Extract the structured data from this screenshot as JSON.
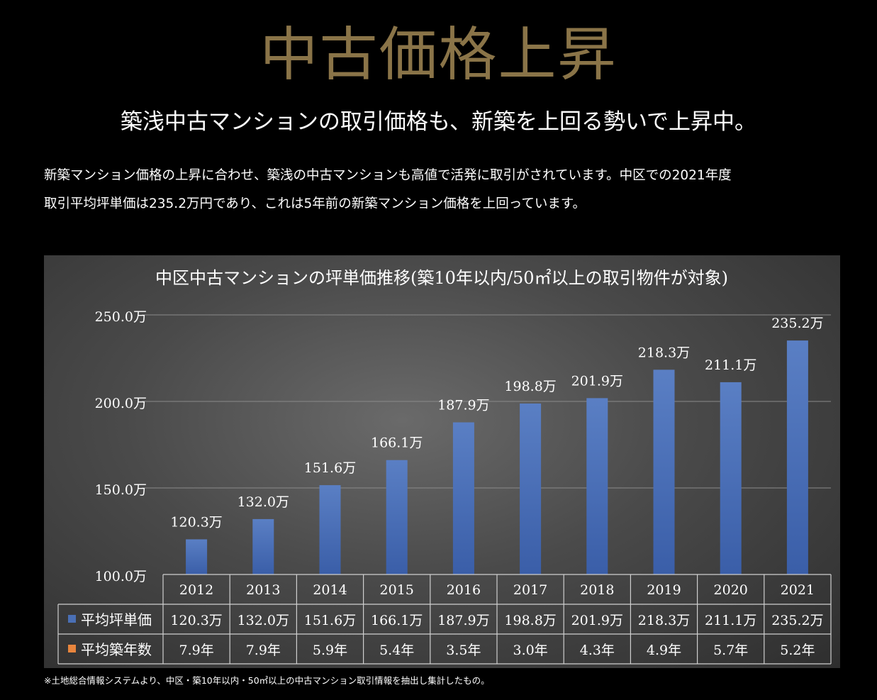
{
  "page": {
    "title": "中古価格上昇",
    "subtitle": "築浅中古マンションの取引価格も、新築を上回る勢いで上昇中。",
    "description_lines": [
      "新築マンション価格の上昇に合わせ、築浅の中古マンションも高値で活発に取引がされています。中区での2021年度",
      "取引平均坪単価は235.2万円であり、これは5年前の新築マンション価格を上回っています。"
    ],
    "footnote": "※土地総合情報システムより、中区・築10年以内・50㎡以上の中古マンション取引情報を抽出し集計したもの。"
  },
  "colors": {
    "title_gold": "#8a7448",
    "bar_blue": "#4a6fb5",
    "legend_orange": "#e8853d"
  },
  "chart_data": {
    "type": "bar",
    "title": "中区中古マンションの坪単価推移(築10年以内/50㎡以上の取引物件が対象)",
    "categories": [
      "2012",
      "2013",
      "2014",
      "2015",
      "2016",
      "2017",
      "2018",
      "2019",
      "2020",
      "2021"
    ],
    "series": [
      {
        "name": "平均坪単価",
        "values": [
          120.3,
          132.0,
          151.6,
          166.1,
          187.9,
          198.8,
          201.9,
          218.3,
          211.1,
          235.2
        ],
        "labels": [
          "120.3万",
          "132.0万",
          "151.6万",
          "166.1万",
          "187.9万",
          "198.8万",
          "201.9万",
          "218.3万",
          "211.1万",
          "235.2万"
        ],
        "color": "#4a6fb5"
      },
      {
        "name": "平均築年数",
        "values": [
          7.9,
          7.9,
          5.9,
          5.4,
          3.5,
          3.0,
          4.3,
          4.9,
          5.7,
          5.2
        ],
        "labels": [
          "7.9年",
          "7.9年",
          "5.9年",
          "5.4年",
          "3.5年",
          "3.0年",
          "4.3年",
          "4.9年",
          "5.7年",
          "5.2年"
        ],
        "color": "#e8853d"
      }
    ],
    "ylim": [
      100,
      250
    ],
    "yticks": [
      100,
      150,
      200,
      250
    ],
    "ytick_labels": [
      "100.0万",
      "150.0万",
      "200.0万",
      "250.0万"
    ],
    "grid": true,
    "data_table": true
  }
}
